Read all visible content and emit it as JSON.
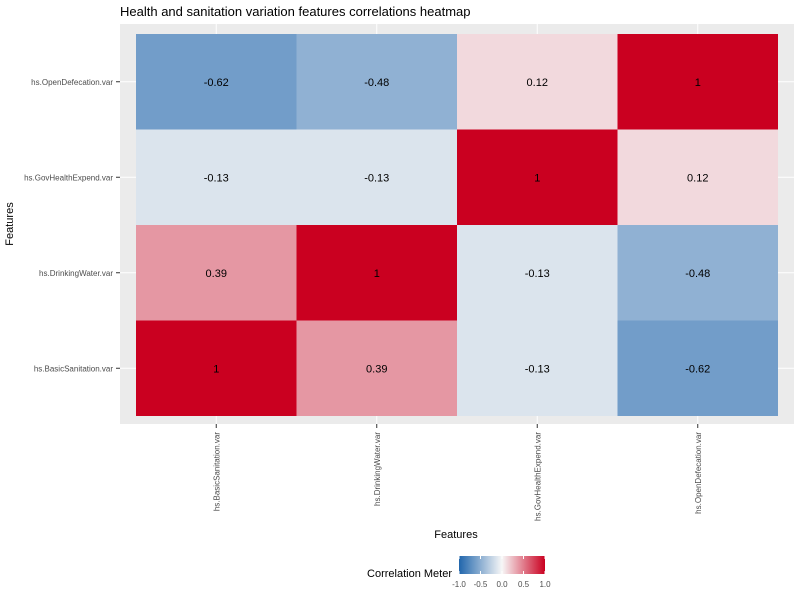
{
  "chart_data": {
    "type": "heatmap",
    "title": "Health and sanitation variation features correlations heatmap",
    "xlabel": "Features",
    "ylabel": "Features",
    "x_categories": [
      "hs.BasicSanitation.var",
      "hs.DrinkingWater.var",
      "hs.GovHealthExpend.var",
      "hs.OpenDefecation.var"
    ],
    "y_categories_top_to_bottom": [
      "hs.OpenDefecation.var",
      "hs.GovHealthExpend.var",
      "hs.DrinkingWater.var",
      "hs.BasicSanitation.var"
    ],
    "cells": [
      {
        "x": "hs.BasicSanitation.var",
        "y": "hs.OpenDefecation.var",
        "value": -0.62,
        "label": "-0.62"
      },
      {
        "x": "hs.DrinkingWater.var",
        "y": "hs.OpenDefecation.var",
        "value": -0.48,
        "label": "-0.48"
      },
      {
        "x": "hs.GovHealthExpend.var",
        "y": "hs.OpenDefecation.var",
        "value": 0.12,
        "label": "0.12"
      },
      {
        "x": "hs.OpenDefecation.var",
        "y": "hs.OpenDefecation.var",
        "value": 1,
        "label": "1"
      },
      {
        "x": "hs.BasicSanitation.var",
        "y": "hs.GovHealthExpend.var",
        "value": -0.13,
        "label": "-0.13"
      },
      {
        "x": "hs.DrinkingWater.var",
        "y": "hs.GovHealthExpend.var",
        "value": -0.13,
        "label": "-0.13"
      },
      {
        "x": "hs.GovHealthExpend.var",
        "y": "hs.GovHealthExpend.var",
        "value": 1,
        "label": "1"
      },
      {
        "x": "hs.OpenDefecation.var",
        "y": "hs.GovHealthExpend.var",
        "value": 0.12,
        "label": "0.12"
      },
      {
        "x": "hs.BasicSanitation.var",
        "y": "hs.DrinkingWater.var",
        "value": 0.39,
        "label": "0.39"
      },
      {
        "x": "hs.DrinkingWater.var",
        "y": "hs.DrinkingWater.var",
        "value": 1,
        "label": "1"
      },
      {
        "x": "hs.GovHealthExpend.var",
        "y": "hs.DrinkingWater.var",
        "value": -0.13,
        "label": "-0.13"
      },
      {
        "x": "hs.OpenDefecation.var",
        "y": "hs.DrinkingWater.var",
        "value": -0.48,
        "label": "-0.48"
      },
      {
        "x": "hs.BasicSanitation.var",
        "y": "hs.BasicSanitation.var",
        "value": 1,
        "label": "1"
      },
      {
        "x": "hs.DrinkingWater.var",
        "y": "hs.BasicSanitation.var",
        "value": 0.39,
        "label": "0.39"
      },
      {
        "x": "hs.GovHealthExpend.var",
        "y": "hs.BasicSanitation.var",
        "value": -0.13,
        "label": "-0.13"
      },
      {
        "x": "hs.OpenDefecation.var",
        "y": "hs.BasicSanitation.var",
        "value": -0.62,
        "label": "-0.62"
      }
    ],
    "legend": {
      "title": "Correlation Meter",
      "placement": "bottom",
      "ticks": [
        -1.0,
        -0.5,
        0.0,
        0.5,
        1.0
      ],
      "tick_labels": [
        "-1.0",
        "-0.5",
        "0.0",
        "0.5",
        "1.0"
      ],
      "range": [
        -1,
        1
      ]
    },
    "colors": {
      "low": "#2166ac",
      "mid": "#f7f7f7",
      "high": "#ca0020",
      "panel_background": "#ebebeb",
      "grid": "#ffffff"
    },
    "grid": true
  }
}
